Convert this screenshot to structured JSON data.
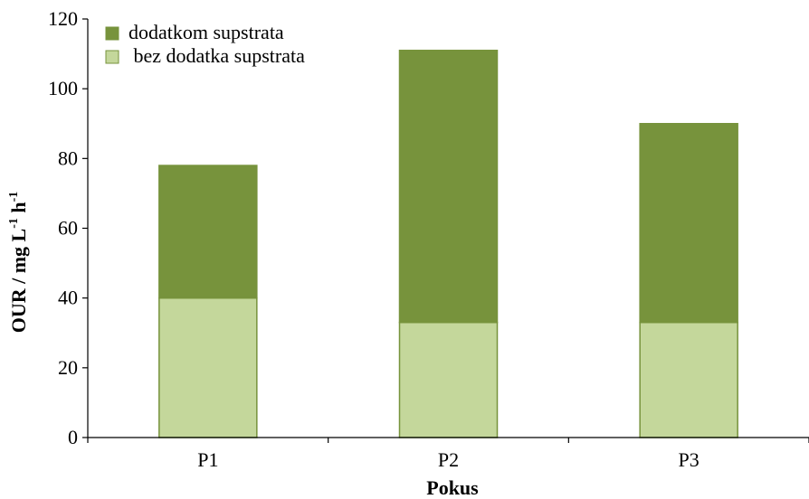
{
  "chart_data": {
    "type": "bar",
    "stacked": true,
    "categories": [
      "P1",
      "P2",
      "P3"
    ],
    "series": [
      {
        "name": " bez dodatka supstrata",
        "values": [
          40,
          33,
          33
        ],
        "color": "#c4d79b",
        "edge": "#77933c"
      },
      {
        "name": "dodatkom supstrata",
        "values": [
          38,
          78,
          57
        ],
        "color": "#77933c",
        "edge": "#77933c"
      }
    ],
    "legend_order": [
      "dodatkom supstrata",
      " bez dodatka supstrata"
    ],
    "legend_position": "top-left",
    "ylim": [
      0,
      120
    ],
    "yticks": [
      0,
      20,
      40,
      60,
      80,
      100,
      120
    ],
    "xlabel": "Pokus",
    "ylabel": {
      "main": "OUR / mg L",
      "sup1": "-1",
      "mid": " h",
      "sup2": "-1"
    },
    "grid": false
  }
}
